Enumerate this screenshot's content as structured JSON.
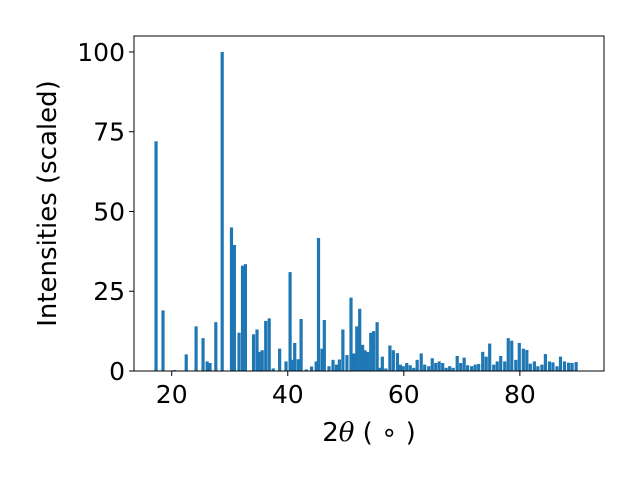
{
  "chart_data": {
    "type": "bar",
    "title": "",
    "xlabel": {
      "prefix": "2",
      "symbol": "θ",
      "suffix": " ( ∘ )"
    },
    "ylabel": "Intensities (scaled)",
    "xlim": [
      13.5,
      94.5
    ],
    "ylim": [
      0,
      105
    ],
    "xticks": [
      20,
      40,
      60,
      80
    ],
    "yticks": [
      0,
      25,
      50,
      75,
      100
    ],
    "bar_width_data": 0.55,
    "bar_color": "#1f77b4",
    "grid": false,
    "x": [
      17.3,
      18.5,
      20.5,
      22.5,
      24.2,
      25.4,
      26.1,
      26.6,
      27.6,
      28.7,
      30.3,
      30.8,
      31.6,
      32.2,
      32.7,
      34.1,
      34.7,
      35.1,
      35.6,
      36.2,
      36.8,
      37.5,
      38.6,
      39.7,
      40.4,
      40.8,
      41.2,
      41.8,
      42.3,
      43.2,
      44.1,
      44.9,
      45.3,
      45.9,
      46.3,
      47.1,
      47.8,
      48.4,
      48.9,
      49.5,
      50.2,
      50.9,
      51.4,
      51.9,
      52.4,
      52.9,
      53.3,
      53.8,
      54.3,
      54.8,
      55.4,
      55.9,
      56.3,
      56.9,
      57.6,
      58.2,
      58.9,
      59.4,
      59.9,
      60.5,
      61.1,
      61.7,
      62.3,
      63.0,
      63.6,
      64.3,
      64.9,
      65.5,
      66.1,
      66.7,
      67.3,
      67.9,
      68.5,
      69.2,
      69.8,
      70.4,
      71.0,
      71.7,
      72.3,
      72.9,
      73.6,
      74.2,
      74.8,
      75.5,
      76.1,
      76.7,
      77.4,
      78.0,
      78.6,
      79.3,
      79.9,
      80.6,
      81.2,
      81.8,
      82.5,
      83.1,
      83.8,
      84.4,
      85.1,
      85.7,
      86.4,
      87.0,
      87.7,
      88.4,
      89.0,
      89.7
    ],
    "values": [
      72,
      19,
      0.3,
      5.2,
      14,
      10.3,
      3,
      2.5,
      15.3,
      100,
      45,
      39.5,
      12,
      33,
      33.5,
      11.5,
      13,
      6,
      6.5,
      15.7,
      16.5,
      0.8,
      7,
      3,
      31,
      3.5,
      8.8,
      3.7,
      16.3,
      0.5,
      1.4,
      3,
      41.7,
      7,
      16,
      1.5,
      3.5,
      2,
      3.6,
      13,
      5,
      23,
      5.5,
      14,
      19.5,
      8.2,
      6.5,
      6,
      12,
      12.5,
      15.3,
      1,
      4.5,
      0.8,
      8,
      6.5,
      5.6,
      2,
      1.5,
      2.5,
      1.8,
      1,
      3.5,
      5.5,
      2,
      1.5,
      4,
      2.5,
      3,
      2.5,
      1,
      1.5,
      1,
      4.7,
      2.5,
      4.2,
      1.8,
      1.5,
      2,
      2.2,
      6,
      4.5,
      8.6,
      2,
      3,
      4.7,
      3,
      10.3,
      9.5,
      3.5,
      8.8,
      7,
      6.6,
      2.3,
      3,
      1.5,
      2,
      5.3,
      3,
      2.7,
      1.5,
      4.5,
      3,
      2.6,
      2.5,
      2.8
    ],
    "x_estimated_fill": true
  }
}
